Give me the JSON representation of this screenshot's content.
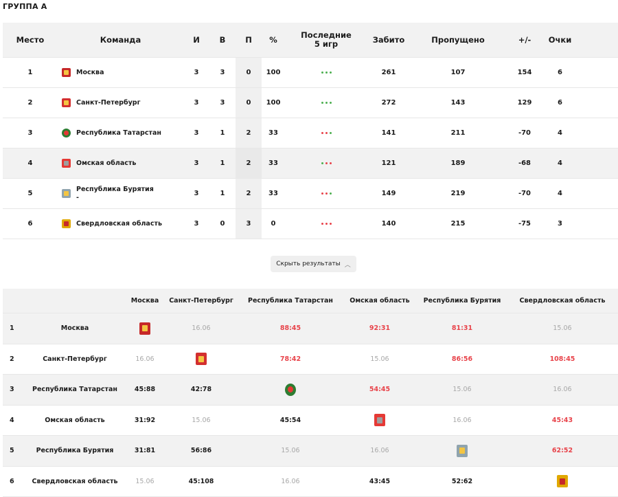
{
  "group_title": "ГРУППА А",
  "standings": {
    "headers": {
      "place": "Место",
      "team": "Команда",
      "games": "И",
      "wins": "В",
      "losses": "П",
      "percent": "%",
      "last5_line1": "Последние",
      "last5_line2": "5 игр",
      "scored": "Забито",
      "conceded": "Пропущено",
      "diff": "+/-",
      "points": "Очки"
    },
    "rows": [
      {
        "place": "1",
        "team": "Москва",
        "team_sub": "",
        "games": "3",
        "wins": "3",
        "losses": "0",
        "percent": "100",
        "last5": [
          "#4caf50",
          "#4caf50",
          "#4caf50"
        ],
        "scored": "261",
        "conceded": "107",
        "diff": "154",
        "points": "6",
        "crest": {
          "color": "#c62828",
          "inner": "#f4c542",
          "shape": "square",
          "icon": "moscow-crest-icon"
        }
      },
      {
        "place": "2",
        "team": "Санкт-Петербург",
        "team_sub": "",
        "games": "3",
        "wins": "3",
        "losses": "0",
        "percent": "100",
        "last5": [
          "#4caf50",
          "#4caf50",
          "#4caf50"
        ],
        "scored": "272",
        "conceded": "143",
        "diff": "129",
        "points": "6",
        "crest": {
          "color": "#d32f2f",
          "inner": "#f4c542",
          "shape": "square",
          "icon": "spb-crest-icon"
        }
      },
      {
        "place": "3",
        "team": "Республика Татарстан",
        "team_sub": "",
        "games": "3",
        "wins": "1",
        "losses": "2",
        "percent": "33",
        "last5": [
          "#e8434a",
          "#e8434a",
          "#4caf50"
        ],
        "scored": "141",
        "conceded": "211",
        "diff": "-70",
        "points": "4",
        "crest": {
          "color": "#2e7d32",
          "inner": "#e53935",
          "shape": "round",
          "icon": "tatarstan-crest-icon"
        }
      },
      {
        "place": "4",
        "team": "Омская область",
        "team_sub": "",
        "games": "3",
        "wins": "1",
        "losses": "2",
        "percent": "33",
        "last5": [
          "#4caf50",
          "#e8434a",
          "#e8434a"
        ],
        "scored": "121",
        "conceded": "189",
        "diff": "-68",
        "points": "4",
        "crest": {
          "color": "#e53935",
          "inner": "#9e9e9e",
          "shape": "square",
          "icon": "omsk-crest-icon"
        }
      },
      {
        "place": "5",
        "team": "Республика Бурятия",
        "team_sub": "-",
        "games": "3",
        "wins": "1",
        "losses": "2",
        "percent": "33",
        "last5": [
          "#e8434a",
          "#e8434a",
          "#4caf50"
        ],
        "scored": "149",
        "conceded": "219",
        "diff": "-70",
        "points": "4",
        "crest": {
          "color": "#90a4ae",
          "inner": "#f4c542",
          "shape": "square",
          "icon": "buryatia-crest-icon"
        }
      },
      {
        "place": "6",
        "team": "Свердловская область",
        "team_sub": "",
        "games": "3",
        "wins": "0",
        "losses": "3",
        "percent": "0",
        "last5": [
          "#e8434a",
          "#e8434a",
          "#e8434a"
        ],
        "scored": "140",
        "conceded": "215",
        "diff": "-75",
        "points": "3",
        "crest": {
          "color": "#e0a800",
          "inner": "#c62828",
          "shape": "square",
          "icon": "sverdlovsk-crest-icon"
        }
      }
    ]
  },
  "toggle_label": "Скрыть результаты",
  "matrix": {
    "headers": [
      "Москва",
      "Санкт-Петербург",
      "Республика Татарстан",
      "Омская область",
      "Республика Бурятия",
      "Свердловская область"
    ],
    "rows": [
      {
        "num": "1",
        "team": "Москва",
        "cells": [
          {
            "crest": true
          },
          {
            "text": "16.06",
            "kind": "date"
          },
          {
            "text": "88:45",
            "kind": "win"
          },
          {
            "text": "92:31",
            "kind": "win"
          },
          {
            "text": "81:31",
            "kind": "win"
          },
          {
            "text": "15.06",
            "kind": "date"
          }
        ]
      },
      {
        "num": "2",
        "team": "Санкт-Петербург",
        "cells": [
          {
            "text": "16.06",
            "kind": "date"
          },
          {
            "crest": true
          },
          {
            "text": "78:42",
            "kind": "win"
          },
          {
            "text": "15.06",
            "kind": "date"
          },
          {
            "text": "86:56",
            "kind": "win"
          },
          {
            "text": "108:45",
            "kind": "win"
          }
        ]
      },
      {
        "num": "3",
        "team": "Республика Татарстан",
        "cells": [
          {
            "text": "45:88",
            "kind": "loss"
          },
          {
            "text": "42:78",
            "kind": "loss"
          },
          {
            "crest": true
          },
          {
            "text": "54:45",
            "kind": "win"
          },
          {
            "text": "15.06",
            "kind": "date"
          },
          {
            "text": "16.06",
            "kind": "date"
          }
        ]
      },
      {
        "num": "4",
        "team": "Омская область",
        "cells": [
          {
            "text": "31:92",
            "kind": "loss"
          },
          {
            "text": "15.06",
            "kind": "date"
          },
          {
            "text": "45:54",
            "kind": "loss"
          },
          {
            "crest": true
          },
          {
            "text": "16.06",
            "kind": "date"
          },
          {
            "text": "45:43",
            "kind": "win"
          }
        ]
      },
      {
        "num": "5",
        "team": "Республика Бурятия",
        "cells": [
          {
            "text": "31:81",
            "kind": "loss"
          },
          {
            "text": "56:86",
            "kind": "loss"
          },
          {
            "text": "15.06",
            "kind": "date"
          },
          {
            "text": "16.06",
            "kind": "date"
          },
          {
            "crest": true
          },
          {
            "text": "62:52",
            "kind": "win"
          }
        ]
      },
      {
        "num": "6",
        "team": "Свердловская область",
        "cells": [
          {
            "text": "15.06",
            "kind": "date"
          },
          {
            "text": "45:108",
            "kind": "loss"
          },
          {
            "text": "16.06",
            "kind": "date"
          },
          {
            "text": "43:45",
            "kind": "loss"
          },
          {
            "text": "52:62",
            "kind": "loss"
          },
          {
            "crest": true
          }
        ]
      }
    ]
  }
}
